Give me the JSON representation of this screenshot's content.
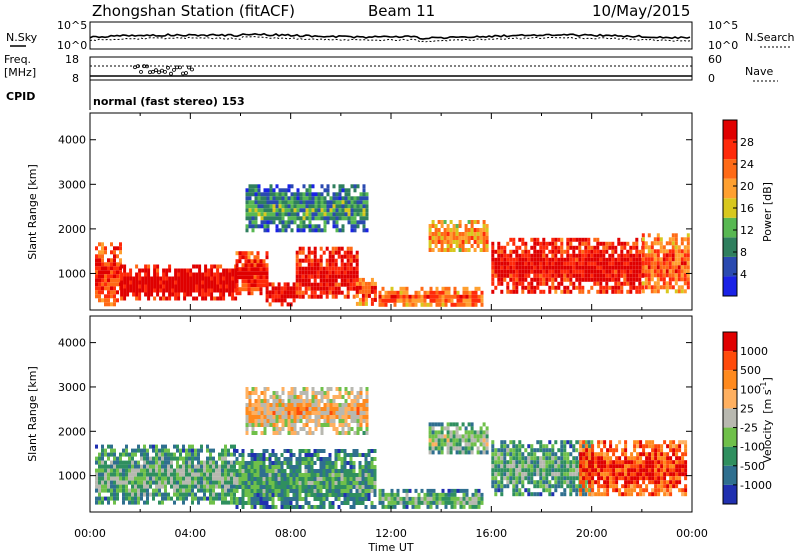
{
  "header": {
    "station": "Zhongshan Station (fitACF)",
    "beam": "Beam 11",
    "date": "10/May/2015"
  },
  "top_panels": {
    "nsky_label": "N.Sky",
    "nsky_ticks": [
      "10^5",
      "10^0"
    ],
    "nsearch_label": "N.Search",
    "nsearch_ticks": [
      "10^5",
      "10^0"
    ],
    "freq_label_1": "Freq.",
    "freq_label_2": "[MHz]",
    "freq_ticks": [
      "18",
      "8"
    ],
    "nave_label": "Nave",
    "nave_ticks": [
      "60",
      "0"
    ],
    "cpid_label": "CPID",
    "cpid_text": "normal (fast stereo) 153"
  },
  "chart_data": [
    {
      "type": "heatmap",
      "name": "power-panel",
      "title": "",
      "xlabel": "",
      "ylabel": "Slant Range [km]",
      "xlim": [
        0,
        24
      ],
      "ylim": [
        180,
        4600
      ],
      "yticks": [
        "1000",
        "2000",
        "3000",
        "4000"
      ],
      "colorbar": {
        "label": "Power [dB]",
        "ticks": [
          "4",
          "8",
          "12",
          "16",
          "20",
          "24",
          "28"
        ],
        "range": [
          0,
          32
        ],
        "colors": [
          "#1a22e6",
          "#2a4ab0",
          "#2f7f5e",
          "#58b852",
          "#d8c81e",
          "#ffa030",
          "#ff6a16",
          "#ff2a0a",
          "#e00000"
        ]
      },
      "echo_regions": [
        {
          "t0": 0.2,
          "t1": 1.2,
          "r0": 350,
          "r1": 1700,
          "level": 0.8
        },
        {
          "t0": 1.2,
          "t1": 5.8,
          "r0": 420,
          "r1": 1200,
          "level": 0.95
        },
        {
          "t0": 5.8,
          "t1": 7.0,
          "r0": 600,
          "r1": 1500,
          "level": 0.85
        },
        {
          "t0": 7.0,
          "t1": 8.2,
          "r0": 300,
          "r1": 800,
          "level": 0.95
        },
        {
          "t0": 8.2,
          "t1": 10.6,
          "r0": 500,
          "r1": 1600,
          "level": 0.9
        },
        {
          "t0": 10.6,
          "t1": 11.4,
          "r0": 350,
          "r1": 900,
          "level": 0.75
        },
        {
          "t0": 11.5,
          "t1": 15.6,
          "r0": 300,
          "r1": 700,
          "level": 0.7
        },
        {
          "t0": 13.5,
          "t1": 15.8,
          "r0": 1500,
          "r1": 2200,
          "level": 0.6
        },
        {
          "t0": 16.0,
          "t1": 22.0,
          "r0": 600,
          "r1": 1800,
          "level": 0.88
        },
        {
          "t0": 22.0,
          "t1": 23.8,
          "r0": 600,
          "r1": 1900,
          "level": 0.7
        },
        {
          "t0": 6.2,
          "t1": 11.0,
          "r0": 2000,
          "r1": 3000,
          "level": 0.25
        }
      ]
    },
    {
      "type": "heatmap",
      "name": "velocity-panel",
      "title": "",
      "xlabel": "Time UT",
      "ylabel": "Slant Range [km]",
      "xlim": [
        0,
        24
      ],
      "ylim": [
        180,
        4600
      ],
      "yticks": [
        "1000",
        "2000",
        "3000",
        "4000"
      ],
      "xticks": [
        "00:00",
        "04:00",
        "08:00",
        "12:00",
        "16:00",
        "20:00",
        "00:00"
      ],
      "colorbar": {
        "label": "Velocity [m s-1]",
        "label_main": "Velocity",
        "label_unit": "[m s",
        "label_exp": "-1",
        "label_close": "]",
        "ticks": [
          "1000",
          "500",
          "100",
          "25",
          "-25",
          "-100",
          "-500",
          "-1000"
        ],
        "colors": [
          "#2030b0",
          "#2f6f8f",
          "#2f8f5f",
          "#6fc04a",
          "#b8b8b0",
          "#ffb060",
          "#ff8a1e",
          "#ff4a0a",
          "#e00000"
        ]
      },
      "echo_regions": [
        {
          "t0": 0.2,
          "t1": 5.8,
          "r0": 350,
          "r1": 1700,
          "level": 0.3
        },
        {
          "t0": 5.8,
          "t1": 11.4,
          "r0": 300,
          "r1": 1600,
          "level": 0.25
        },
        {
          "t0": 6.2,
          "t1": 11.0,
          "r0": 2000,
          "r1": 3000,
          "level": 0.55
        },
        {
          "t0": 11.5,
          "t1": 15.6,
          "r0": 300,
          "r1": 700,
          "level": 0.3
        },
        {
          "t0": 13.5,
          "t1": 15.8,
          "r0": 1500,
          "r1": 2200,
          "level": 0.35
        },
        {
          "t0": 16.0,
          "t1": 20.0,
          "r0": 600,
          "r1": 1800,
          "level": 0.3
        },
        {
          "t0": 19.5,
          "t1": 23.8,
          "r0": 600,
          "r1": 1800,
          "level": 0.82
        }
      ]
    }
  ]
}
